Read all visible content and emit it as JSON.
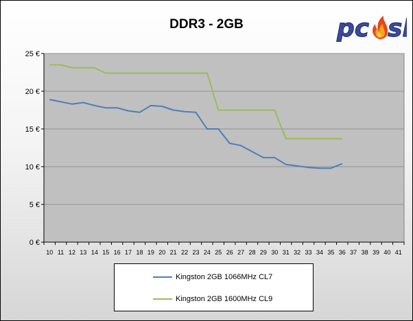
{
  "chart_data": {
    "type": "line",
    "title": "DDR3 - 2GB",
    "y_unit": "€",
    "ylim": [
      0,
      25
    ],
    "y_ticks": [
      0,
      5,
      10,
      15,
      20,
      25
    ],
    "x_ticks": [
      10,
      11,
      12,
      13,
      14,
      15,
      16,
      17,
      18,
      19,
      20,
      21,
      22,
      23,
      24,
      25,
      26,
      27,
      28,
      29,
      30,
      31,
      32,
      33,
      34,
      35,
      36,
      37,
      38,
      39,
      40,
      41
    ],
    "grid": "horizontal",
    "legend_position": "bottom",
    "series": [
      {
        "name": "Kingston 2GB 1066MHz CL7",
        "color": "#4a7ebb",
        "x": [
          10,
          11,
          12,
          13,
          14,
          15,
          16,
          17,
          18,
          19,
          20,
          21,
          22,
          23,
          24,
          25,
          26,
          27,
          28,
          29,
          30,
          31,
          32,
          33,
          34,
          35,
          36
        ],
        "y": [
          18.9,
          18.6,
          18.3,
          18.5,
          18.1,
          17.8,
          17.8,
          17.4,
          17.2,
          18.1,
          18.0,
          17.5,
          17.3,
          17.2,
          15.0,
          15.0,
          13.1,
          12.8,
          12.0,
          11.2,
          11.2,
          10.3,
          10.1,
          9.9,
          9.8,
          9.8,
          10.4
        ]
      },
      {
        "name": "Kingston 2GB 1600MHz CL9",
        "color": "#9bbb59",
        "x": [
          10,
          11,
          12,
          13,
          14,
          15,
          16,
          17,
          18,
          19,
          20,
          21,
          22,
          23,
          24,
          25,
          26,
          27,
          28,
          29,
          30,
          31,
          32,
          33,
          34,
          35,
          36
        ],
        "y": [
          23.5,
          23.5,
          23.1,
          23.1,
          23.1,
          22.4,
          22.4,
          22.4,
          22.4,
          22.4,
          22.4,
          22.4,
          22.4,
          22.4,
          22.4,
          17.5,
          17.5,
          17.5,
          17.5,
          17.5,
          17.5,
          13.7,
          13.7,
          13.7,
          13.7,
          13.7,
          13.7
        ]
      }
    ]
  },
  "logo": {
    "text_left": "pc",
    "text_right": "sk",
    "flame_colors": [
      "#f5a623",
      "#e8471c",
      "#ffd34d"
    ],
    "text_color": "#3b4a9c"
  }
}
